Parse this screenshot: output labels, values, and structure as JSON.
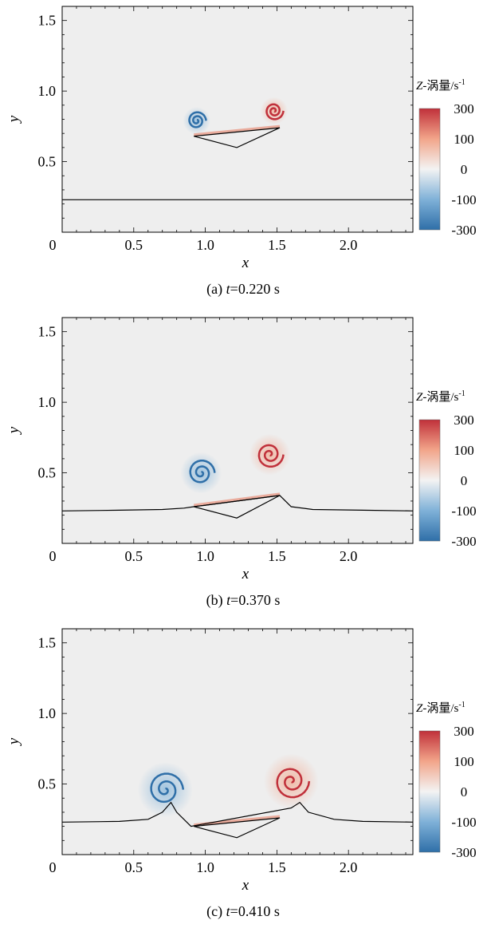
{
  "colorbar": {
    "title_prefix": "Z",
    "title_rest": "-涡量/s",
    "title_sup": "-1",
    "ticks": [
      "300",
      "100",
      "0",
      "-100",
      "-300"
    ],
    "colors": [
      "#2f6fa8",
      "#7fb1d8",
      "#f3f3f3",
      "#f2a58a",
      "#c0303a"
    ]
  },
  "chart_data": [
    {
      "type": "heatmap",
      "caption_prefix": "(a) ",
      "caption_t": "t",
      "caption_rest": "=0.220 s",
      "xlabel": "x",
      "ylabel": "y",
      "xlim": [
        0,
        2.45
      ],
      "ylim": [
        0,
        1.6
      ],
      "xticks": [
        "0",
        "0.5",
        "1.0",
        "1.5",
        "2.0"
      ],
      "yticks": [
        "0.5",
        "1.0",
        "1.5"
      ],
      "clim": [
        -300,
        300
      ],
      "free_surface": [
        [
          0,
          0.23
        ],
        [
          0.3,
          0.23
        ],
        [
          0.6,
          0.23
        ],
        [
          0.9,
          0.23
        ],
        [
          1.2,
          0.23
        ],
        [
          1.5,
          0.23
        ],
        [
          1.8,
          0.23
        ],
        [
          2.1,
          0.23
        ],
        [
          2.45,
          0.23
        ]
      ],
      "wedge": [
        [
          0.92,
          0.68
        ],
        [
          1.22,
          0.6
        ],
        [
          1.52,
          0.74
        ]
      ],
      "vortices": [
        {
          "x": 0.94,
          "y": 0.79,
          "sign": -1,
          "size": 0.06
        },
        {
          "x": 1.48,
          "y": 0.86,
          "sign": 1,
          "size": 0.06
        }
      ]
    },
    {
      "type": "heatmap",
      "caption_prefix": "(b) ",
      "caption_t": "t",
      "caption_rest": "=0.370 s",
      "xlabel": "x",
      "ylabel": "y",
      "xlim": [
        0,
        2.45
      ],
      "ylim": [
        0,
        1.6
      ],
      "xticks": [
        "0",
        "0.5",
        "1.0",
        "1.5",
        "2.0"
      ],
      "yticks": [
        "0.5",
        "1.0",
        "1.5"
      ],
      "clim": [
        -300,
        300
      ],
      "free_surface": [
        [
          0,
          0.23
        ],
        [
          0.4,
          0.235
        ],
        [
          0.7,
          0.24
        ],
        [
          0.85,
          0.25
        ],
        [
          0.92,
          0.26
        ],
        [
          1.52,
          0.34
        ],
        [
          1.6,
          0.26
        ],
        [
          1.75,
          0.24
        ],
        [
          2.1,
          0.235
        ],
        [
          2.45,
          0.23
        ]
      ],
      "wedge": [
        [
          0.92,
          0.26
        ],
        [
          1.22,
          0.18
        ],
        [
          1.52,
          0.34
        ]
      ],
      "vortices": [
        {
          "x": 0.97,
          "y": 0.5,
          "sign": -1,
          "size": 0.09
        },
        {
          "x": 1.45,
          "y": 0.63,
          "sign": 1,
          "size": 0.09
        }
      ]
    },
    {
      "type": "heatmap",
      "caption_prefix": "(c) ",
      "caption_t": "t",
      "caption_rest": "=0.410 s",
      "xlabel": "x",
      "ylabel": "y",
      "xlim": [
        0,
        2.45
      ],
      "ylim": [
        0,
        1.6
      ],
      "xticks": [
        "0",
        "0.5",
        "1.0",
        "1.5",
        "2.0"
      ],
      "yticks": [
        "0.5",
        "1.0",
        "1.5"
      ],
      "clim": [
        -300,
        300
      ],
      "free_surface": [
        [
          0,
          0.23
        ],
        [
          0.4,
          0.235
        ],
        [
          0.6,
          0.25
        ],
        [
          0.7,
          0.3
        ],
        [
          0.76,
          0.37
        ],
        [
          0.8,
          0.3
        ],
        [
          0.9,
          0.2
        ],
        [
          1.6,
          0.33
        ],
        [
          1.66,
          0.37
        ],
        [
          1.72,
          0.3
        ],
        [
          1.9,
          0.25
        ],
        [
          2.1,
          0.235
        ],
        [
          2.45,
          0.23
        ]
      ],
      "wedge": [
        [
          0.92,
          0.2
        ],
        [
          1.22,
          0.12
        ],
        [
          1.52,
          0.26
        ]
      ],
      "vortices": [
        {
          "x": 0.72,
          "y": 0.46,
          "sign": -1,
          "size": 0.12
        },
        {
          "x": 1.6,
          "y": 0.52,
          "sign": 1,
          "size": 0.12
        }
      ]
    }
  ]
}
